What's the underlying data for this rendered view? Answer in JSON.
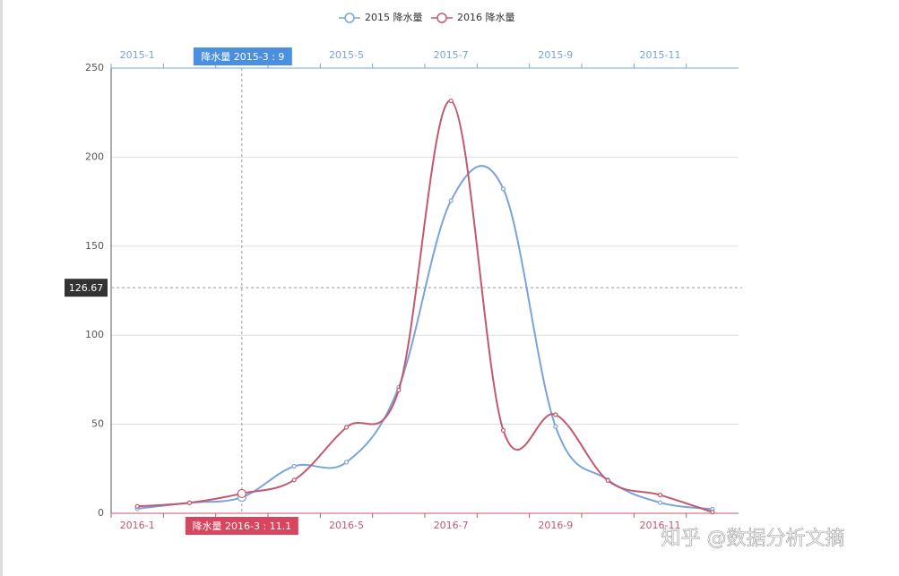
{
  "chart_data": {
    "type": "line",
    "categories_top": [
      "2015-1",
      null,
      null,
      null,
      "2015-5",
      null,
      "2015-7",
      null,
      "2015-9",
      null,
      "2015-11",
      null
    ],
    "categories_bottom": [
      "2016-1",
      null,
      null,
      null,
      "2016-5",
      null,
      "2016-7",
      null,
      "2016-9",
      null,
      "2016-11",
      null
    ],
    "series": [
      {
        "name": "2015 降水量",
        "color": "#7aa3db",
        "axis": "top",
        "values": [
          2.6,
          5.9,
          9.0,
          26.4,
          28.7,
          70.7,
          175.6,
          182.2,
          48.7,
          18.8,
          6.0,
          2.3
        ]
      },
      {
        "name": "2016 降水量",
        "color": "#c2596f",
        "axis": "bottom",
        "values": [
          3.9,
          5.9,
          11.1,
          18.7,
          48.3,
          69.2,
          231.6,
          46.6,
          55.4,
          18.4,
          10.3,
          0.7
        ]
      }
    ],
    "ylim": [
      0,
      250
    ],
    "yticks": [
      0,
      50,
      100,
      150,
      200,
      250
    ],
    "grid": true,
    "legend": "top",
    "pointer": {
      "category": 2,
      "top_label": "降水量  2015-3 : 9",
      "bottom_label": "降水量  2016-3 : 11.1",
      "y_value": 126.67
    },
    "watermark": "知乎 @数据分析文摘"
  }
}
